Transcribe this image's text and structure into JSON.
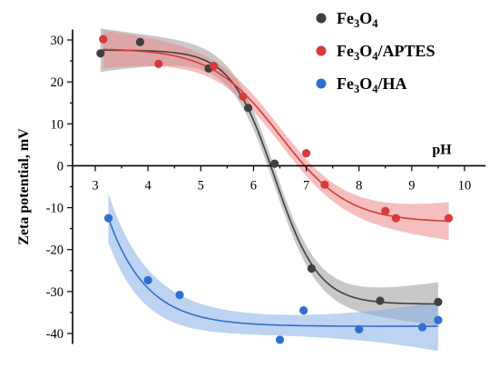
{
  "chart_data": {
    "type": "scatter",
    "title": "",
    "xlabel": "pH",
    "ylabel": "Zeta potential, mV",
    "xlim": [
      2.8,
      10.4
    ],
    "ylim": [
      -42.5,
      32.5
    ],
    "x_ticks": [
      3,
      4,
      5,
      6,
      7,
      8,
      9,
      10
    ],
    "y_ticks": [
      30,
      20,
      10,
      0,
      -10,
      -20,
      -30,
      -40
    ],
    "x_tick_labels": [
      "3",
      "4",
      "5",
      "6",
      "7",
      "8",
      "9",
      "10"
    ],
    "y_tick_labels": [
      "30",
      "20",
      "10",
      "0",
      "-10",
      "-20",
      "-30",
      "-40"
    ],
    "grid": false,
    "legend_position": "top-right",
    "series": [
      {
        "name": "Fe3O4",
        "name_parts": [
          "Fe",
          "3",
          "O",
          "4"
        ],
        "color": "#404040",
        "band_color": "#9a9a9a",
        "points": [
          [
            3.1,
            26.8
          ],
          [
            3.85,
            29.5
          ],
          [
            5.15,
            23.2
          ],
          [
            5.9,
            13.8
          ],
          [
            6.4,
            0.5
          ],
          [
            7.1,
            -24.5
          ],
          [
            8.4,
            -32.2
          ],
          [
            9.5,
            -32.5
          ]
        ],
        "fit": {
          "top": 27.6,
          "bottom": -33.0,
          "x0": 6.4,
          "k": 2.4
        },
        "band_width": 4.0
      },
      {
        "name": "Fe3O4/APTES",
        "name_parts": [
          "Fe",
          "3",
          "O",
          "4",
          "/APTES"
        ],
        "color": "#d63a3a",
        "band_color": "#ef8a8a",
        "points": [
          [
            3.15,
            30.2
          ],
          [
            4.2,
            24.3
          ],
          [
            5.25,
            23.8
          ],
          [
            5.8,
            16.5
          ],
          [
            7.0,
            3.0
          ],
          [
            7.35,
            -4.5
          ],
          [
            8.5,
            -10.8
          ],
          [
            8.7,
            -12.5
          ],
          [
            9.7,
            -12.5
          ]
        ],
        "fit": {
          "top": 28.0,
          "bottom": -13.5,
          "x0": 6.5,
          "k": 1.55
        },
        "band_width": 3.5
      },
      {
        "name": "Fe3O4/HA",
        "name_parts": [
          "Fe",
          "3",
          "O",
          "4",
          "/HA"
        ],
        "color": "#2f6fcf",
        "band_color": "#86aee8",
        "points": [
          [
            3.25,
            -12.5
          ],
          [
            4.0,
            -27.3
          ],
          [
            4.6,
            -30.8
          ],
          [
            6.5,
            -41.5
          ],
          [
            6.95,
            -34.5
          ],
          [
            8.0,
            -39.0
          ],
          [
            9.2,
            -38.5
          ],
          [
            9.5,
            -36.8
          ]
        ],
        "fit": {
          "type": "exp",
          "plateau": -38.3,
          "amp": 25.8,
          "x0": 3.25,
          "tau": 0.72
        },
        "band_width": 4.5
      }
    ]
  }
}
